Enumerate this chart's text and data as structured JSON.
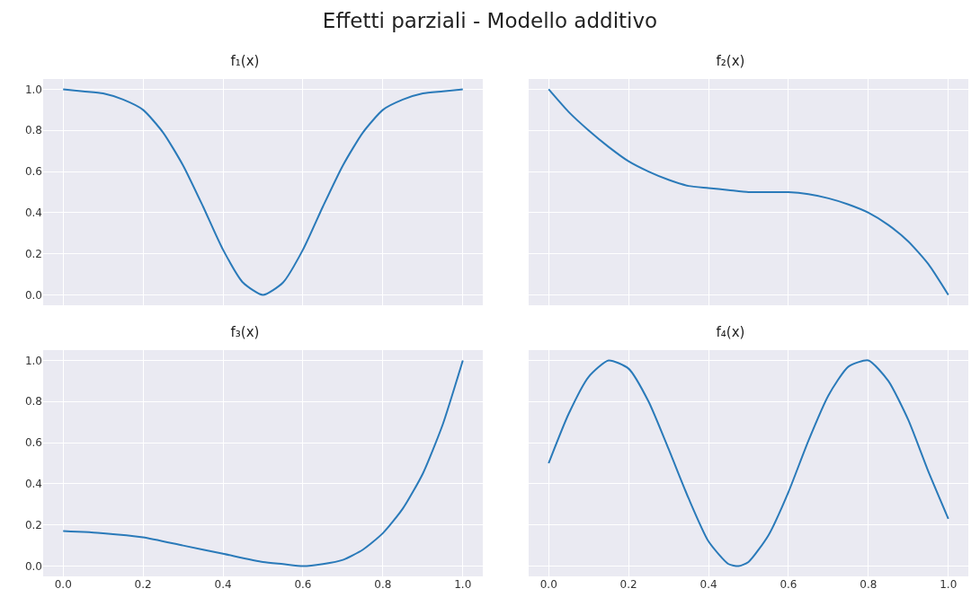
{
  "chart_data": [
    {
      "type": "line",
      "title": "Effetti parziali - Modello additivo",
      "subtitle": "f₁(x)",
      "x": [
        0,
        0.05,
        0.1,
        0.15,
        0.2,
        0.25,
        0.3,
        0.35,
        0.4,
        0.45,
        0.5,
        0.55,
        0.6,
        0.65,
        0.7,
        0.75,
        0.8,
        0.85,
        0.9,
        0.95,
        1
      ],
      "values": [
        1.0,
        0.99,
        0.98,
        0.95,
        0.9,
        0.79,
        0.63,
        0.43,
        0.22,
        0.06,
        0.0,
        0.06,
        0.22,
        0.43,
        0.63,
        0.79,
        0.9,
        0.95,
        0.98,
        0.99,
        1.0
      ],
      "color": "#2a7ab9",
      "xlim": [
        -0.05,
        1.05
      ],
      "ylim": [
        -0.05,
        1.05
      ],
      "xticks": [
        {
          "value": 0,
          "label": null
        },
        {
          "value": 0.2,
          "label": null
        },
        {
          "value": 0.4,
          "label": null
        },
        {
          "value": 0.6,
          "label": null
        },
        {
          "value": 0.8,
          "label": null
        },
        {
          "value": 1,
          "label": null
        }
      ],
      "yticks": [
        {
          "value": 0,
          "label": "0.0"
        },
        0.2,
        0.4,
        0.6,
        0.8,
        {
          "value": 1,
          "label": "1.0"
        }
      ],
      "grid": true,
      "tick_labels": "y"
    },
    {
      "type": "line",
      "subtitle": "f₂(x)",
      "x": [
        0,
        0.05,
        0.1,
        0.15,
        0.2,
        0.25,
        0.3,
        0.35,
        0.4,
        0.45,
        0.5,
        0.55,
        0.6,
        0.65,
        0.7,
        0.75,
        0.8,
        0.85,
        0.9,
        0.95,
        1
      ],
      "values": [
        1.0,
        0.89,
        0.8,
        0.72,
        0.65,
        0.6,
        0.56,
        0.53,
        0.52,
        0.51,
        0.5,
        0.5,
        0.5,
        0.49,
        0.47,
        0.44,
        0.4,
        0.34,
        0.26,
        0.15,
        0.0
      ],
      "color": "#2a7ab9",
      "xlim": [
        -0.05,
        1.05
      ],
      "ylim": [
        -0.05,
        1.05
      ],
      "xticks": [
        {
          "value": 0,
          "label": null
        },
        {
          "value": 0.2,
          "label": null
        },
        {
          "value": 0.4,
          "label": null
        },
        {
          "value": 0.6,
          "label": null
        },
        {
          "value": 0.8,
          "label": null
        },
        {
          "value": 1,
          "label": null
        }
      ],
      "yticks": [
        {
          "value": 0,
          "label": null
        },
        {
          "value": 0.2,
          "label": null
        },
        {
          "value": 0.4,
          "label": null
        },
        {
          "value": 0.6,
          "label": null
        },
        {
          "value": 0.8,
          "label": null
        },
        {
          "value": 1,
          "label": null
        }
      ],
      "grid": true,
      "tick_labels": false
    },
    {
      "type": "line",
      "subtitle": "f₃(x)",
      "x": [
        0,
        0.1,
        0.2,
        0.3,
        0.4,
        0.5,
        0.55,
        0.6,
        0.65,
        0.7,
        0.75,
        0.8,
        0.85,
        0.9,
        0.95,
        1
      ],
      "values": [
        0.17,
        0.16,
        0.14,
        0.1,
        0.06,
        0.02,
        0.01,
        0.0,
        0.01,
        0.03,
        0.08,
        0.16,
        0.28,
        0.45,
        0.69,
        1.0
      ],
      "color": "#2a7ab9",
      "xlim": [
        -0.05,
        1.05
      ],
      "ylim": [
        -0.05,
        1.05
      ],
      "xticks": [
        {
          "value": 0,
          "label": "0.0"
        },
        0.2,
        0.4,
        0.6,
        0.8,
        {
          "value": 1,
          "label": "1.0"
        }
      ],
      "yticks": [
        {
          "value": 0,
          "label": "0.0"
        },
        0.2,
        0.4,
        0.6,
        0.8,
        {
          "value": 1,
          "label": "1.0"
        }
      ],
      "grid": true
    },
    {
      "type": "line",
      "subtitle": "f₄(x)",
      "x": [
        0,
        0.05,
        0.1,
        0.15,
        0.2,
        0.25,
        0.3,
        0.35,
        0.4,
        0.45,
        0.475,
        0.5,
        0.55,
        0.6,
        0.65,
        0.7,
        0.75,
        0.8,
        0.85,
        0.9,
        0.95,
        1
      ],
      "values": [
        0.5,
        0.74,
        0.92,
        1.0,
        0.96,
        0.8,
        0.57,
        0.33,
        0.12,
        0.01,
        0.0,
        0.02,
        0.15,
        0.36,
        0.61,
        0.83,
        0.97,
        1.0,
        0.9,
        0.71,
        0.46,
        0.23
      ],
      "color": "#2a7ab9",
      "xlim": [
        -0.05,
        1.05
      ],
      "ylim": [
        -0.05,
        1.05
      ],
      "xticks": [
        {
          "value": 0,
          "label": "0.0"
        },
        0.2,
        0.4,
        0.6,
        0.8,
        {
          "value": 1,
          "label": "1.0"
        }
      ],
      "yticks": [
        {
          "value": 0,
          "label": null
        },
        {
          "value": 0.2,
          "label": null
        },
        {
          "value": 0.4,
          "label": null
        },
        {
          "value": 0.6,
          "label": null
        },
        {
          "value": 0.8,
          "label": null
        },
        {
          "value": 1,
          "label": null
        }
      ],
      "grid": true,
      "tick_labels": "x"
    }
  ]
}
